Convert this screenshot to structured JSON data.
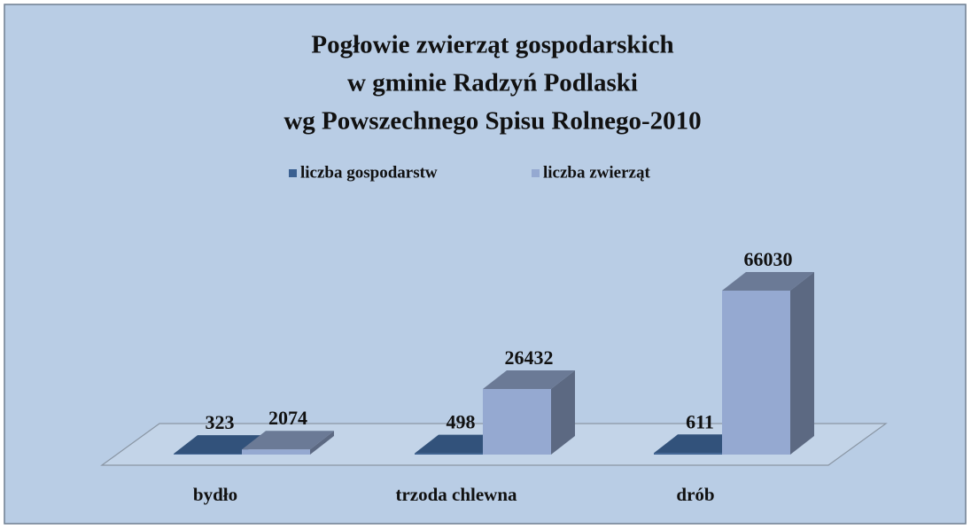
{
  "chart_data": {
    "type": "bar3d",
    "title": [
      "Pogłowie zwierząt gospodarskich",
      "w gminie Radzyń Podlaski",
      "wg Powszechnego Spisu Rolnego-2010"
    ],
    "categories": [
      "bydło",
      "trzoda chlewna",
      "drób"
    ],
    "series": [
      {
        "name": "liczba gospodarstw",
        "color": "#3b6091",
        "values": [
          323,
          498,
          611
        ]
      },
      {
        "name": "liczba zwierząt",
        "color": "#95a9d1",
        "values": [
          2074,
          26432,
          66030
        ]
      }
    ]
  }
}
